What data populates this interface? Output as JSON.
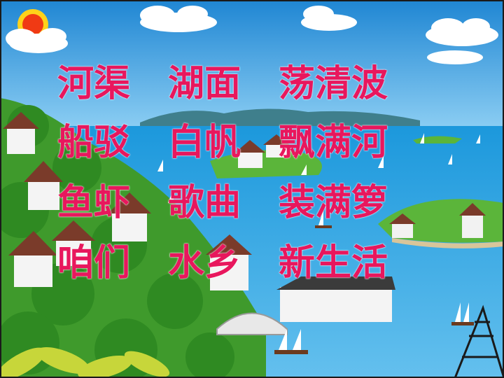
{
  "slide": {
    "lines": [
      [
        "河渠",
        "湖面",
        "荡清波"
      ],
      [
        "船驳",
        "白帆",
        "飘满河"
      ],
      [
        "鱼虾",
        "歌曲",
        "装满箩"
      ],
      [
        "咱们",
        "水乡",
        "新生活"
      ]
    ]
  },
  "colors": {
    "text": "#e8175d",
    "sky": "#2b8fd6",
    "sea": "#3aa6e0",
    "grass": "#4fae2e",
    "sun": "#f03a14"
  }
}
